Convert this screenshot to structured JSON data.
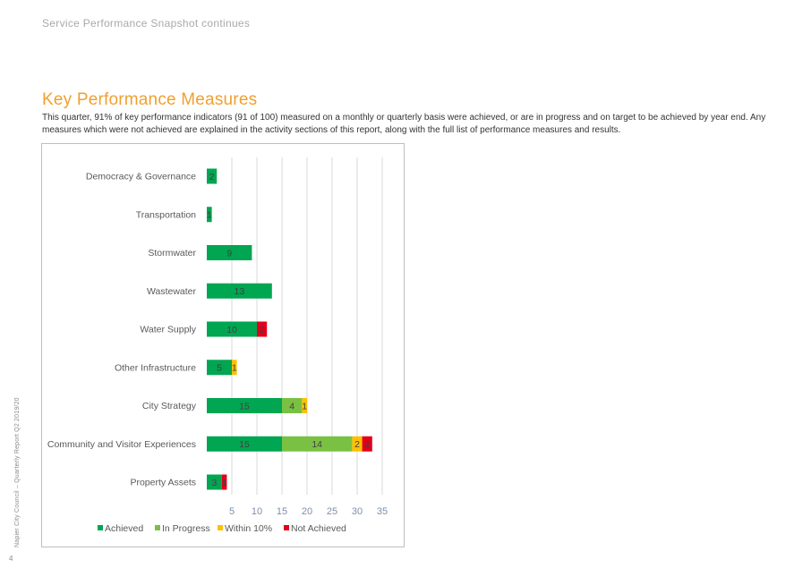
{
  "header": {
    "running_title": "Service Performance Snapshot continues"
  },
  "section": {
    "title": "Key Performance Measures",
    "intro": "This quarter, 91% of key performance indicators (91 of 100) measured on a monthly or quarterly basis were achieved, or are in progress and on target to be achieved by year end. Any measures which were not achieved are explained in the activity sections of this report, along with the full list of performance measures and results."
  },
  "footer": {
    "side_label": "Napier City Council – Quarterly Report Q2 2019/20",
    "page_number": "4"
  },
  "colors": {
    "accent_title": "#f0a030",
    "achieved": "#00a651",
    "in_progress": "#7ac143",
    "within_10": "#ffc000",
    "not_achieved": "#e2001a"
  },
  "chart_data": {
    "type": "bar",
    "orientation": "horizontal",
    "stacked": true,
    "categories": [
      "Democracy & Governance",
      "Transportation",
      "Stormwater",
      "Wastewater",
      "Water Supply",
      "Other Infrastructure",
      "City Strategy",
      "Community and Visitor Experiences",
      "Property Assets"
    ],
    "series": [
      {
        "name": "Achieved",
        "color": "#00a651",
        "values": [
          2,
          1,
          9,
          13,
          10,
          5,
          15,
          15,
          3
        ]
      },
      {
        "name": "In Progress",
        "color": "#7ac143",
        "values": [
          0,
          0,
          0,
          0,
          0,
          0,
          4,
          14,
          0
        ]
      },
      {
        "name": "Within 10%",
        "color": "#ffc000",
        "values": [
          0,
          0,
          0,
          0,
          0,
          1,
          1,
          2,
          0
        ]
      },
      {
        "name": "Not Achieved",
        "color": "#e2001a",
        "values": [
          0,
          0,
          0,
          0,
          2,
          0,
          0,
          2,
          1
        ]
      }
    ],
    "xlim": [
      0,
      35
    ],
    "xticks": [
      5,
      10,
      15,
      20,
      25,
      30,
      35
    ],
    "xtick_labels": [
      "5",
      "10",
      "15",
      "20",
      "25",
      "30",
      "35"
    ],
    "grid": "vertical",
    "legend": "bottom"
  }
}
